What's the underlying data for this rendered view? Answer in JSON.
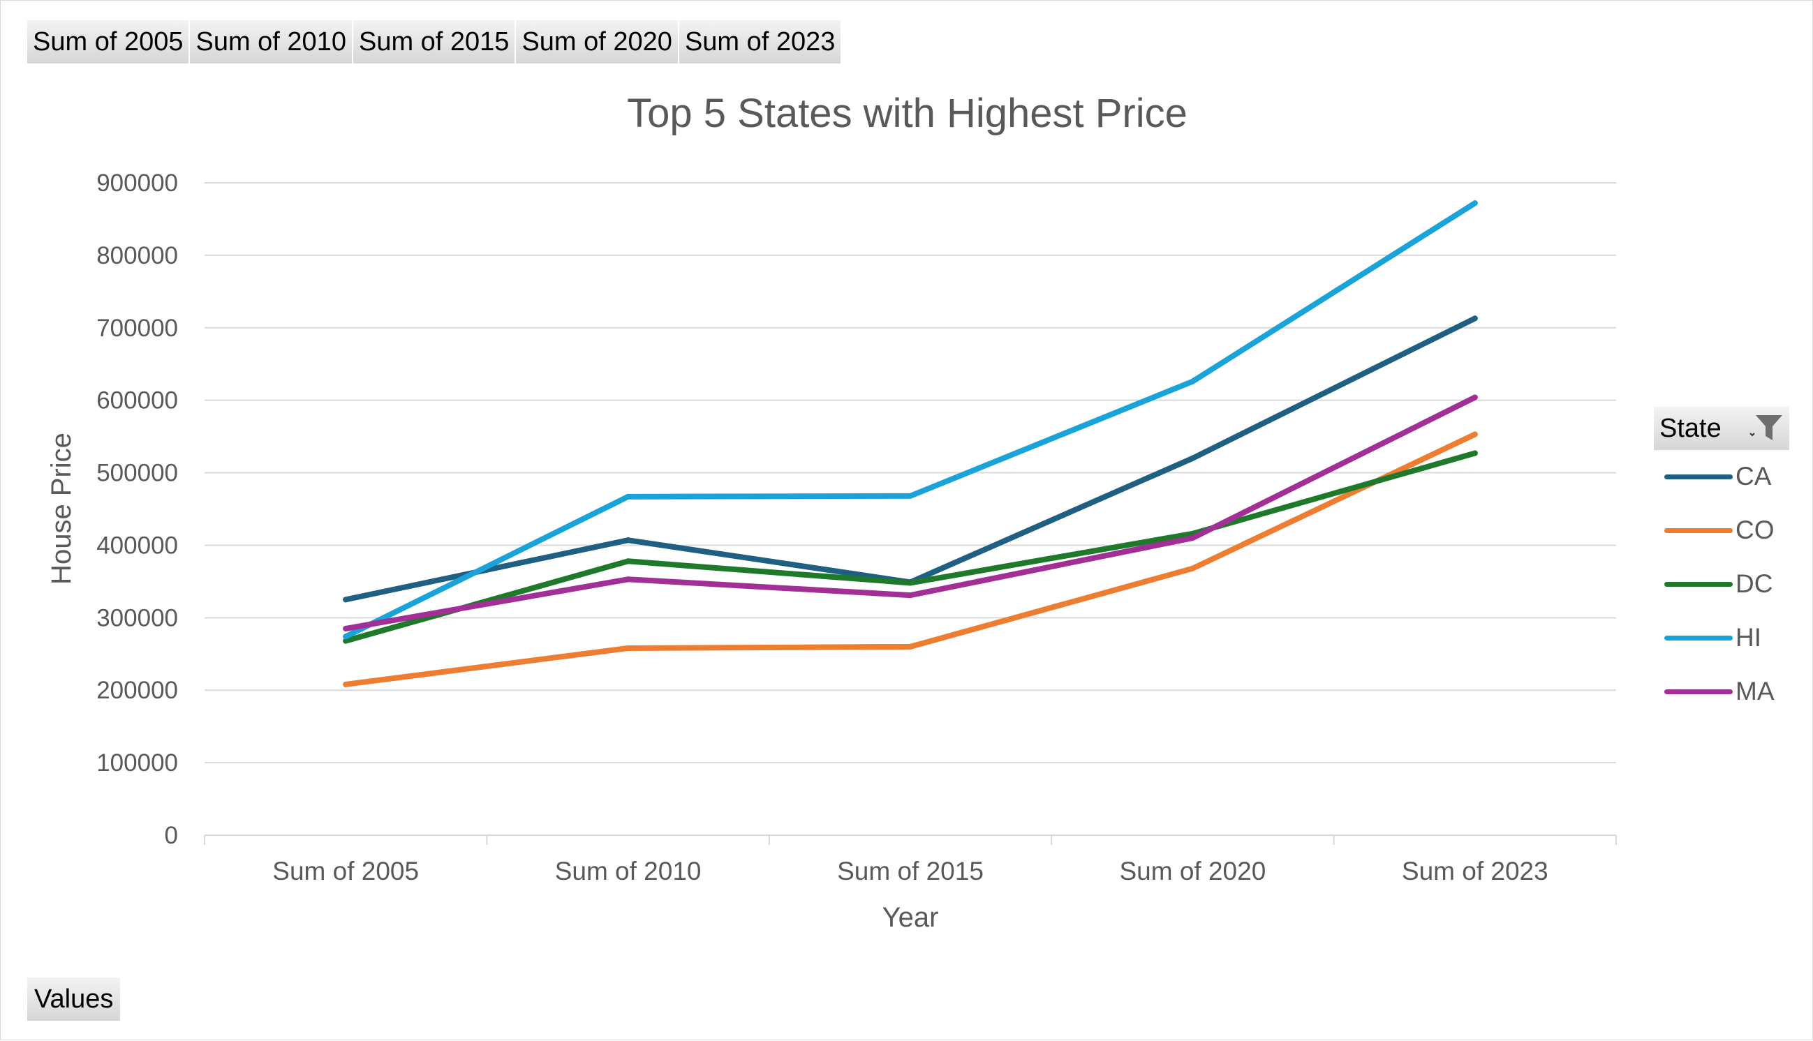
{
  "field_buttons": [
    "Sum of 2005",
    "Sum of 2010",
    "Sum of 2015",
    "Sum of 2020",
    "Sum of 2023"
  ],
  "values_button": "Values",
  "legend": {
    "title": "State"
  },
  "colors": {
    "CA": "#1f5f82",
    "CO": "#ed7d31",
    "DC": "#1e7a2a",
    "HI": "#19a3d8",
    "MA": "#a12f96",
    "grid": "#d9d9d9",
    "text": "#595959"
  },
  "chart_data": {
    "type": "line",
    "title": "Top 5 States with Highest Price",
    "xlabel": "Year",
    "ylabel": "House Price",
    "categories": [
      "Sum of 2005",
      "Sum of 2010",
      "Sum of 2015",
      "Sum of 2020",
      "Sum of 2023"
    ],
    "ylim": [
      0,
      900000
    ],
    "yticks": [
      "0",
      "100000",
      "200000",
      "300000",
      "400000",
      "500000",
      "600000",
      "700000",
      "800000",
      "900000"
    ],
    "grid": true,
    "legend_position": "right",
    "series": [
      {
        "name": "CA",
        "values": [
          325000,
          407000,
          349000,
          520000,
          713000
        ]
      },
      {
        "name": "CO",
        "values": [
          208000,
          258000,
          260000,
          368000,
          553000
        ]
      },
      {
        "name": "DC",
        "values": [
          268000,
          378000,
          348000,
          416000,
          527000
        ]
      },
      {
        "name": "HI",
        "values": [
          274000,
          467000,
          468000,
          626000,
          872000
        ]
      },
      {
        "name": "MA",
        "values": [
          285000,
          353000,
          331000,
          410000,
          604000
        ]
      }
    ]
  }
}
